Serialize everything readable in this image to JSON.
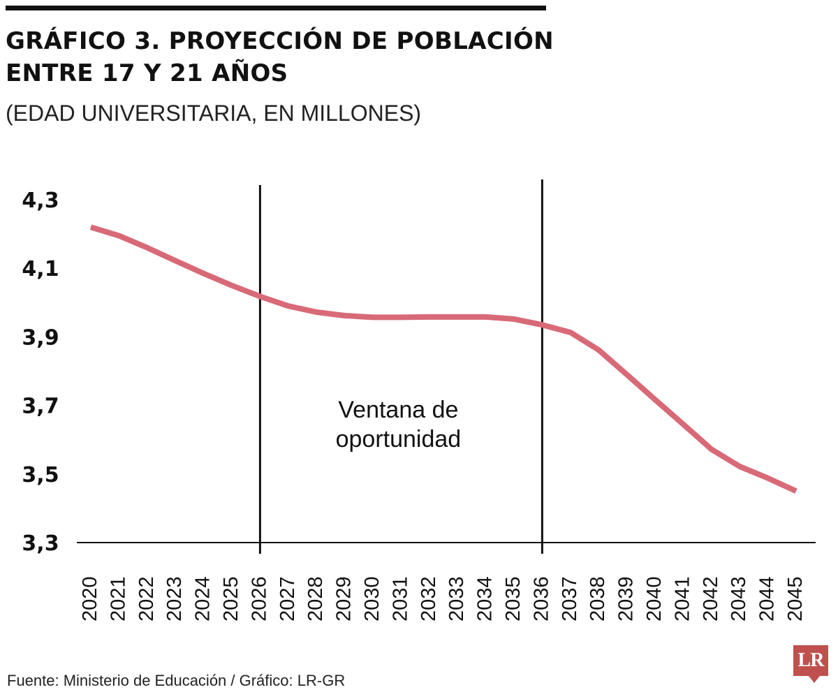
{
  "title": "GRÁFICO 3. PROYECCIÓN DE POBLACIÓN ENTRE 17 Y 21 AÑOS",
  "subtitle": "(EDAD UNIVERSITARIA, EN MILLONES)",
  "source": "Fuente: Ministerio de Educación / Gráfico: LR-GR",
  "logo_text": "LR",
  "colors": {
    "line": "#d86a78",
    "text": "#111111",
    "logo": "#c0504d"
  },
  "chart_data": {
    "type": "line",
    "x": [
      2020,
      2021,
      2022,
      2023,
      2024,
      2025,
      2026,
      2027,
      2028,
      2029,
      2030,
      2031,
      2032,
      2033,
      2034,
      2035,
      2036,
      2037,
      2038,
      2039,
      2040,
      2041,
      2042,
      2043,
      2044,
      2045
    ],
    "x_tick_labels": [
      "2020",
      "2021",
      "2022",
      "2023",
      "2024",
      "2025",
      "2026",
      "2027",
      "2028",
      "2029",
      "2030",
      "2031",
      "2032",
      "2033",
      "2034",
      "2035",
      "2036",
      "2037",
      "2038",
      "2039",
      "2040",
      "2041",
      "2042",
      "2043",
      "2044",
      "2045"
    ],
    "series": [
      {
        "values": [
          4.22,
          4.195,
          4.16,
          4.122,
          4.085,
          4.05,
          4.018,
          3.99,
          3.972,
          3.962,
          3.957,
          3.957,
          3.958,
          3.958,
          3.958,
          3.952,
          3.935,
          3.913,
          3.862,
          3.79,
          3.717,
          3.645,
          3.572,
          3.522,
          3.488,
          3.45
        ]
      }
    ],
    "y_ticks": [
      3.3,
      3.5,
      3.7,
      3.9,
      4.1,
      4.3
    ],
    "y_tick_labels": [
      "3,3",
      "3,5",
      "3,7",
      "3,9",
      "4,1",
      "4,3"
    ],
    "ylim": [
      3.3,
      4.3
    ],
    "grid": false,
    "legend": "none",
    "vertical_markers": [
      2026,
      2036
    ],
    "annotation": {
      "lines": [
        "Ventana de",
        "oportunidad"
      ],
      "x": 2031
    }
  }
}
